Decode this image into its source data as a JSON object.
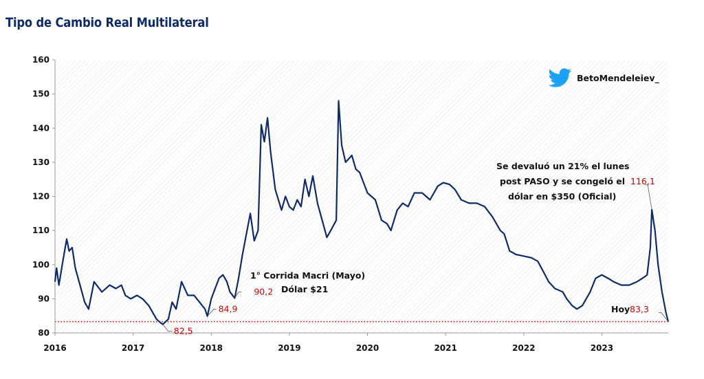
{
  "title": "Tipo de Cambio Real Multilateral",
  "watermark": {
    "icon": "twitter-bird-icon",
    "handle": "BetoMendeleiev_",
    "icon_color": "#1da1f2"
  },
  "colors": {
    "line": "#0d2a6b",
    "accent": "#cc0000",
    "grid": "#e4e4e4"
  },
  "chart_data": {
    "type": "line",
    "title": "Tipo de Cambio Real Multilateral",
    "xlabel": "",
    "ylabel": "",
    "x_ticks": [
      "2016",
      "2017",
      "2018",
      "2019",
      "2020",
      "2021",
      "2022",
      "2023"
    ],
    "x_range": [
      2016.0,
      2023.85
    ],
    "ylim": [
      80,
      160
    ],
    "y_ticks": [
      80,
      90,
      100,
      110,
      120,
      130,
      140,
      150,
      160
    ],
    "grid": "hatched background",
    "legend": "none",
    "reference_line": {
      "value": 83.3,
      "style": "dotted"
    },
    "series": [
      {
        "points": [
          [
            2016.0,
            95
          ],
          [
            2016.02,
            99
          ],
          [
            2016.05,
            94
          ],
          [
            2016.1,
            101
          ],
          [
            2016.15,
            107.5
          ],
          [
            2016.18,
            104
          ],
          [
            2016.22,
            105
          ],
          [
            2016.26,
            99
          ],
          [
            2016.32,
            94
          ],
          [
            2016.38,
            89
          ],
          [
            2016.43,
            87
          ],
          [
            2016.5,
            95
          ],
          [
            2016.6,
            92
          ],
          [
            2016.7,
            94
          ],
          [
            2016.78,
            93
          ],
          [
            2016.85,
            94
          ],
          [
            2016.9,
            91
          ],
          [
            2016.97,
            90
          ],
          [
            2017.05,
            91
          ],
          [
            2017.12,
            90
          ],
          [
            2017.2,
            88
          ],
          [
            2017.3,
            84
          ],
          [
            2017.35,
            83
          ],
          [
            2017.38,
            82.5
          ],
          [
            2017.45,
            84
          ],
          [
            2017.5,
            89
          ],
          [
            2017.55,
            87
          ],
          [
            2017.62,
            95
          ],
          [
            2017.7,
            91
          ],
          [
            2017.78,
            91
          ],
          [
            2017.85,
            89
          ],
          [
            2017.92,
            87
          ],
          [
            2017.95,
            84.9
          ],
          [
            2018.0,
            90
          ],
          [
            2018.05,
            93
          ],
          [
            2018.1,
            96
          ],
          [
            2018.15,
            97
          ],
          [
            2018.2,
            95
          ],
          [
            2018.24,
            92
          ],
          [
            2018.3,
            90.2
          ],
          [
            2018.35,
            96
          ],
          [
            2018.4,
            103
          ],
          [
            2018.45,
            109
          ],
          [
            2018.5,
            115
          ],
          [
            2018.55,
            107
          ],
          [
            2018.6,
            110
          ],
          [
            2018.64,
            141
          ],
          [
            2018.68,
            136
          ],
          [
            2018.72,
            143
          ],
          [
            2018.76,
            133
          ],
          [
            2018.82,
            122
          ],
          [
            2018.9,
            116
          ],
          [
            2018.95,
            120
          ],
          [
            2019.0,
            117
          ],
          [
            2019.05,
            116
          ],
          [
            2019.1,
            119
          ],
          [
            2019.15,
            117
          ],
          [
            2019.2,
            125
          ],
          [
            2019.25,
            120
          ],
          [
            2019.3,
            126
          ],
          [
            2019.36,
            118
          ],
          [
            2019.42,
            113
          ],
          [
            2019.48,
            108
          ],
          [
            2019.53,
            110
          ],
          [
            2019.6,
            113
          ],
          [
            2019.63,
            148
          ],
          [
            2019.67,
            135
          ],
          [
            2019.72,
            130
          ],
          [
            2019.8,
            132
          ],
          [
            2019.85,
            128
          ],
          [
            2019.9,
            127
          ],
          [
            2020.0,
            121
          ],
          [
            2020.1,
            119
          ],
          [
            2020.18,
            113
          ],
          [
            2020.25,
            112
          ],
          [
            2020.3,
            110
          ],
          [
            2020.38,
            116
          ],
          [
            2020.45,
            118
          ],
          [
            2020.52,
            117
          ],
          [
            2020.6,
            121
          ],
          [
            2020.7,
            121
          ],
          [
            2020.8,
            119
          ],
          [
            2020.9,
            123
          ],
          [
            2020.97,
            124
          ],
          [
            2021.05,
            123.5
          ],
          [
            2021.12,
            122
          ],
          [
            2021.2,
            119
          ],
          [
            2021.3,
            118
          ],
          [
            2021.4,
            118
          ],
          [
            2021.5,
            117
          ],
          [
            2021.6,
            114
          ],
          [
            2021.7,
            110
          ],
          [
            2021.75,
            109
          ],
          [
            2021.82,
            104
          ],
          [
            2021.9,
            103
          ],
          [
            2022.0,
            102.5
          ],
          [
            2022.1,
            102
          ],
          [
            2022.18,
            101
          ],
          [
            2022.25,
            98
          ],
          [
            2022.32,
            95
          ],
          [
            2022.4,
            93
          ],
          [
            2022.5,
            92
          ],
          [
            2022.55,
            90
          ],
          [
            2022.62,
            88
          ],
          [
            2022.68,
            87
          ],
          [
            2022.75,
            88
          ],
          [
            2022.85,
            92
          ],
          [
            2022.92,
            96
          ],
          [
            2023.0,
            97
          ],
          [
            2023.08,
            96
          ],
          [
            2023.15,
            95
          ],
          [
            2023.25,
            94
          ],
          [
            2023.35,
            94
          ],
          [
            2023.45,
            95
          ],
          [
            2023.52,
            96
          ],
          [
            2023.58,
            97
          ],
          [
            2023.62,
            105
          ],
          [
            2023.64,
            116.1
          ],
          [
            2023.68,
            110
          ],
          [
            2023.72,
            100
          ],
          [
            2023.77,
            92
          ],
          [
            2023.82,
            86
          ],
          [
            2023.85,
            83.3
          ]
        ]
      }
    ],
    "annotations": [
      {
        "lines": [
          "1° Corrida Macri (Mayo)",
          "Dólar $21"
        ],
        "x": 2018.3,
        "y": 90.2,
        "value_label": "90,2"
      },
      {
        "lines": [],
        "x": 2017.38,
        "y": 82.5,
        "value_label": "82,5"
      },
      {
        "lines": [],
        "x": 2017.95,
        "y": 84.9,
        "value_label": "84,9"
      },
      {
        "lines": [
          "Se devaluó un 21% el lunes",
          "post PASO y se congeló el",
          "dólar en $350 (Oficial)"
        ],
        "x": 2023.64,
        "y": 116.1,
        "value_label": "116,1"
      },
      {
        "lines": [
          "Hoy"
        ],
        "x": 2023.85,
        "y": 83.3,
        "value_label": "83,3"
      }
    ]
  }
}
